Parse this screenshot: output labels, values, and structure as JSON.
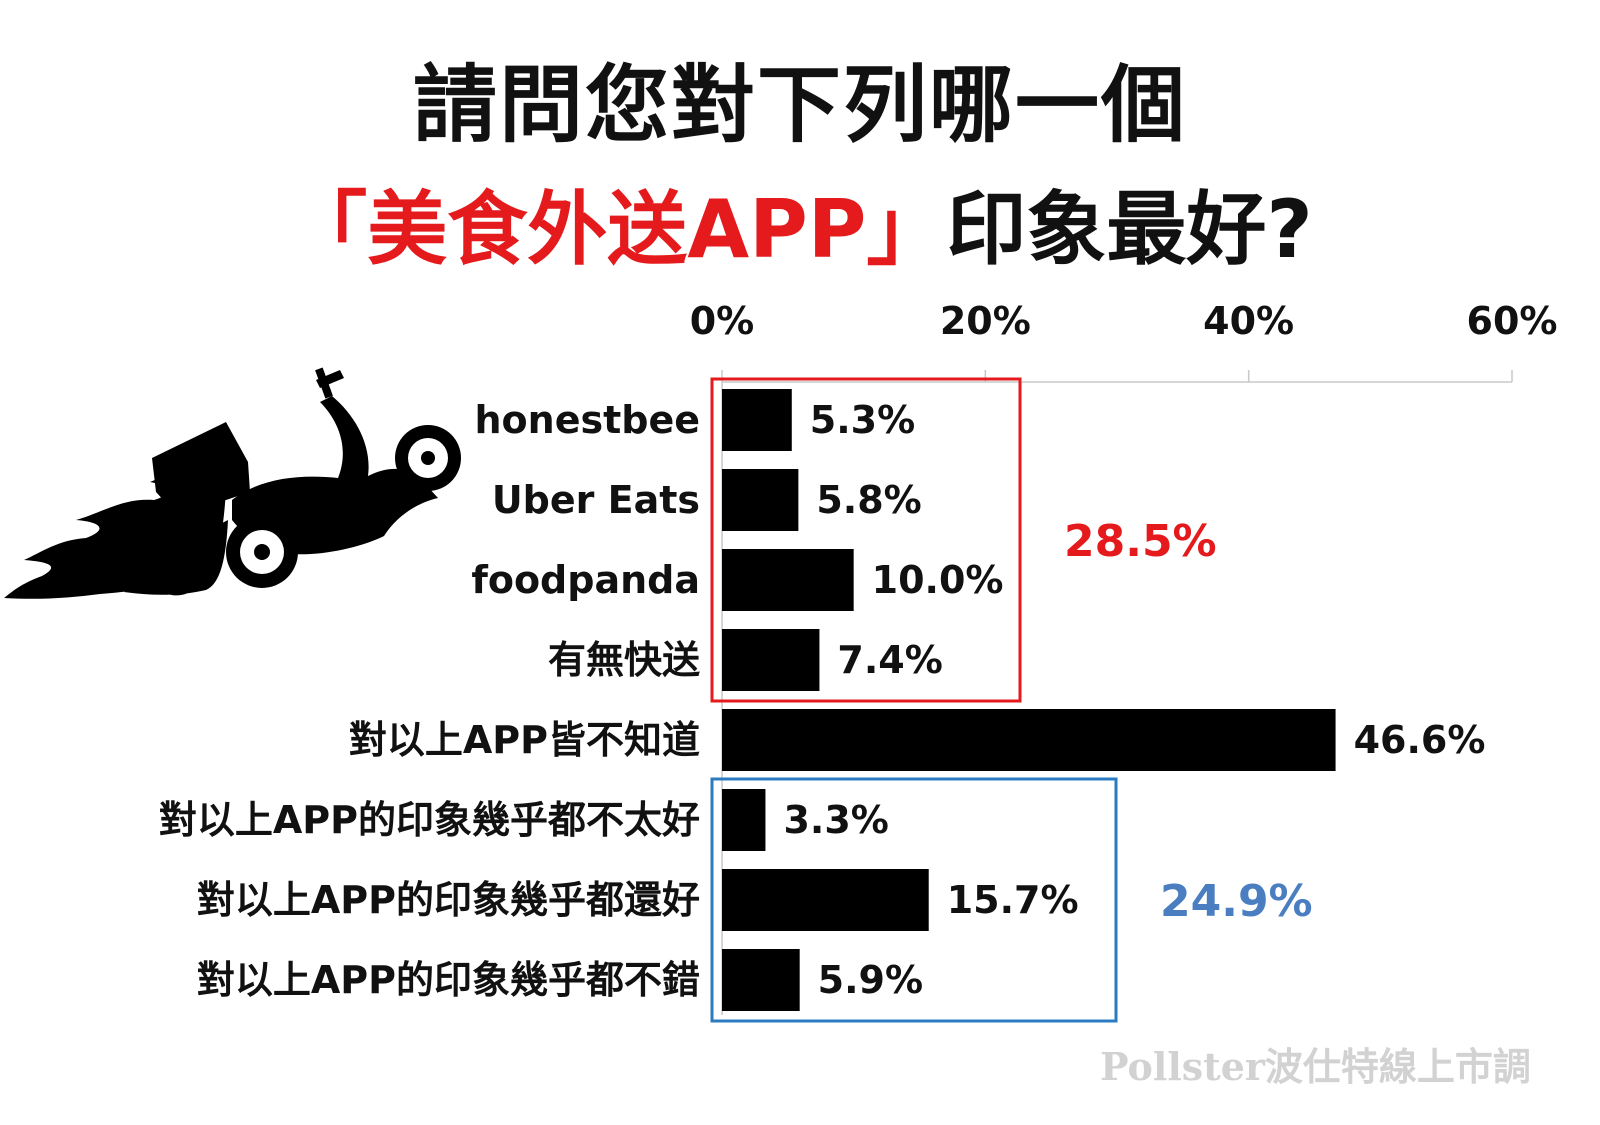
{
  "title": {
    "line1": "請問您對下列哪一個",
    "line2_open": "「",
    "line2_highlight": "美食外送APP",
    "line2_close": "」",
    "line2_rest": "印象最好?"
  },
  "colors": {
    "highlight_red": "#e41a1c",
    "bar": "#000000",
    "group_red": "#e41a1c",
    "group_blue": "#2b7bc0",
    "subtotal_blue": "#4a7ec0",
    "grid": "#c8c8c8"
  },
  "illustration": {
    "icon": "delivery-scooter-icon"
  },
  "chart_data": {
    "type": "bar",
    "orientation": "horizontal",
    "categories": [
      "honestbee",
      "Uber Eats",
      "foodpanda",
      "有無快送",
      "對以上APP皆不知道",
      "對以上APP的印象幾乎都不太好",
      "對以上APP的印象幾乎都還好",
      "對以上APP的印象幾乎都不錯"
    ],
    "values": [
      5.3,
      5.8,
      10.0,
      7.4,
      46.6,
      3.3,
      15.7,
      5.9
    ],
    "value_labels": [
      "5.3%",
      "5.8%",
      "10.0%",
      "7.4%",
      "46.6%",
      "3.3%",
      "15.7%",
      "5.9%"
    ],
    "xlim": [
      0,
      60
    ],
    "ticks": [
      0,
      20,
      40,
      60
    ],
    "tick_labels": [
      "0%",
      "20%",
      "40%",
      "60%"
    ],
    "axis_position": "top",
    "grid": true,
    "groups": [
      {
        "members": [
          0,
          1,
          2,
          3
        ],
        "total_label": "28.5%",
        "color": "#e41a1c"
      },
      {
        "members": [
          5,
          6,
          7
        ],
        "total_label": "24.9%",
        "color": "#4a7ec0"
      }
    ]
  },
  "watermark": "Pollster波仕特線上市調"
}
